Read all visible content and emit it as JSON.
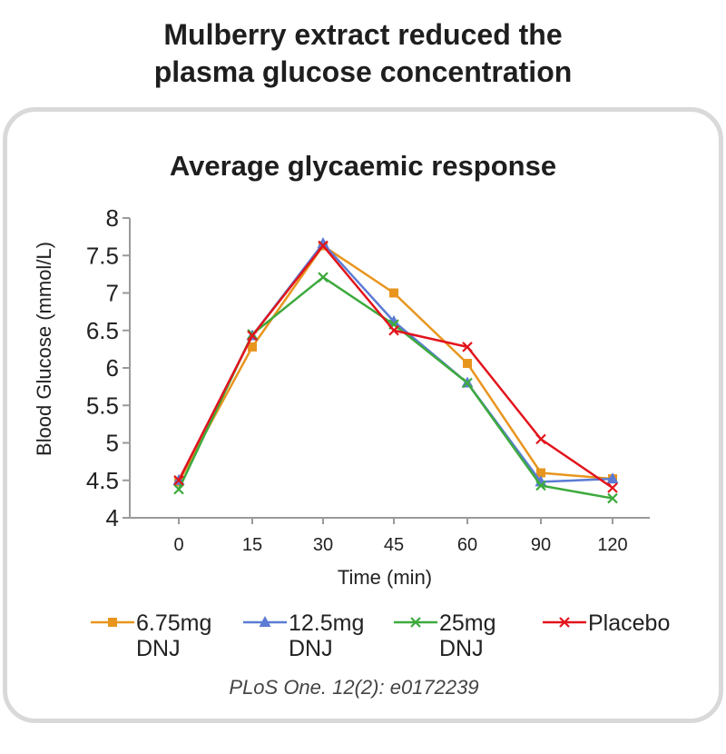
{
  "headline": {
    "line1": "Mulberry extract reduced the",
    "line2": "plasma glucose concentration"
  },
  "footer_partial": "",
  "chart_data": {
    "type": "line",
    "title": "Average glycaemic response",
    "xlabel": "Time (min)",
    "ylabel": "Blood Glucose (mmol/L)",
    "categories": [
      "0",
      "15",
      "30",
      "45",
      "60",
      "90",
      "120"
    ],
    "ylim": [
      4,
      8
    ],
    "yticks": [
      "4",
      "4.5",
      "5",
      "5.5",
      "6",
      "6.5",
      "7",
      "7.5",
      "8"
    ],
    "grid": false,
    "legend_position": "bottom",
    "series": [
      {
        "name": "6.75mg DNJ",
        "legend_line1": "6.75mg",
        "legend_line2": "DNJ",
        "color": "#E8951E",
        "marker": "square",
        "values": [
          4.48,
          6.28,
          7.63,
          7.0,
          6.06,
          4.6,
          4.52
        ]
      },
      {
        "name": "12.5mg DNJ",
        "legend_line1": "12.5mg",
        "legend_line2": "DNJ",
        "color": "#5B7BD5",
        "marker": "triangle",
        "values": [
          4.5,
          6.43,
          7.66,
          6.62,
          5.8,
          4.48,
          4.52
        ]
      },
      {
        "name": "25mg DNJ",
        "legend_line1": "25mg",
        "legend_line2": "DNJ",
        "color": "#3DAA3D",
        "marker": "x",
        "values": [
          4.38,
          6.45,
          7.21,
          6.58,
          5.8,
          4.43,
          4.26
        ]
      },
      {
        "name": "Placebo",
        "legend_line1": "Placebo",
        "legend_line2": "",
        "color": "#E2141B",
        "marker": "x",
        "values": [
          4.5,
          6.43,
          7.63,
          6.5,
          6.28,
          5.05,
          4.4
        ]
      }
    ],
    "citation": "PLoS One. 12(2): e0172239"
  }
}
